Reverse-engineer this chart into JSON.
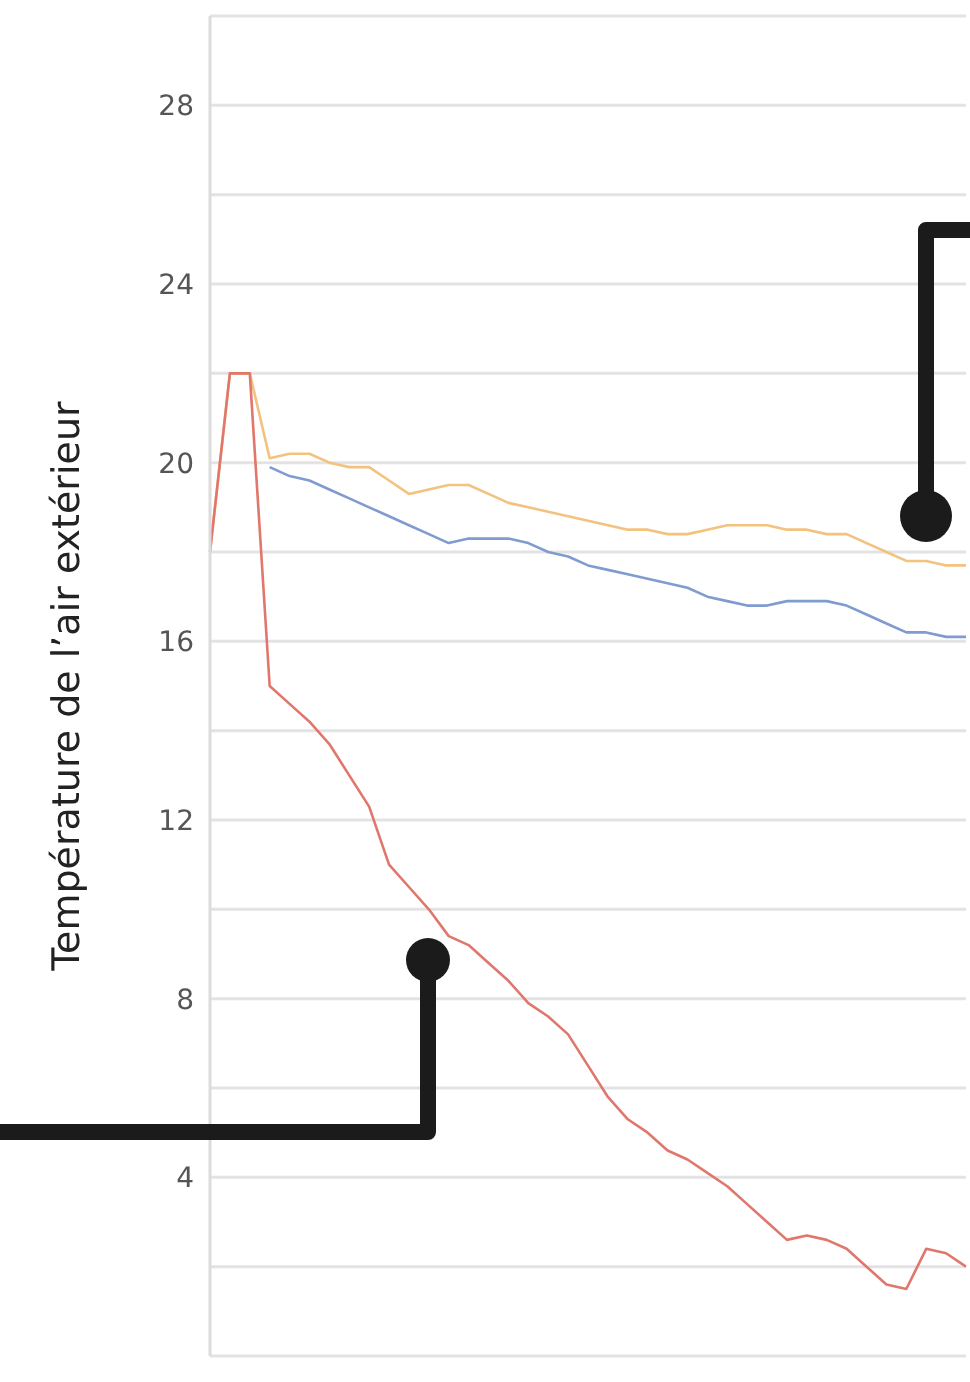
{
  "chart_data": {
    "type": "line",
    "ylabel": "Température de l’air extérieur",
    "categories": [
      null,
      null,
      null,
      null,
      null,
      null,
      null,
      null,
      null,
      null,
      null,
      null,
      null,
      null,
      null,
      null,
      null,
      null,
      null,
      null,
      null,
      null,
      null,
      null,
      null,
      null,
      null,
      null,
      null,
      null,
      null,
      null,
      null,
      null,
      null,
      null,
      null,
      null,
      null
    ],
    "series": [
      {
        "color": "#f3c27f",
        "values": [
          18,
          22,
          22,
          20.1,
          20.2,
          20.2,
          20.0,
          19.9,
          19.9,
          19.6,
          19.3,
          19.4,
          19.5,
          19.5,
          19.3,
          19.1,
          19.0,
          18.9,
          18.8,
          18.7,
          18.6,
          18.5,
          18.5,
          18.4,
          18.4,
          18.5,
          18.6,
          18.6,
          18.6,
          18.5,
          18.5,
          18.4,
          18.4,
          18.2,
          18.0,
          17.8,
          17.8,
          17.7,
          17.7
        ]
      },
      {
        "color": "#7f9bd0",
        "values": [
          null,
          null,
          null,
          19.9,
          19.7,
          19.6,
          19.4,
          19.2,
          19.0,
          18.8,
          18.6,
          18.4,
          18.2,
          18.3,
          18.3,
          18.3,
          18.2,
          18.0,
          17.9,
          17.7,
          17.6,
          17.5,
          17.4,
          17.3,
          17.2,
          17.0,
          16.9,
          16.8,
          16.8,
          16.9,
          16.9,
          16.9,
          16.8,
          16.6,
          16.4,
          16.2,
          16.2,
          16.1,
          16.1
        ]
      },
      {
        "color": "#e0776c",
        "values": [
          18,
          22,
          22,
          15.0,
          14.6,
          14.2,
          13.7,
          13.0,
          12.3,
          11.0,
          10.5,
          10.0,
          9.4,
          9.2,
          8.8,
          8.4,
          7.9,
          7.6,
          7.2,
          6.5,
          5.8,
          5.3,
          5.0,
          4.6,
          4.4,
          4.1,
          3.8,
          3.4,
          3.0,
          2.6,
          2.7,
          2.6,
          2.4,
          2.0,
          1.6,
          1.5,
          2.4,
          2.3,
          2.0
        ]
      }
    ],
    "ylim": [
      0,
      30
    ],
    "yticks": [
      {
        "value": 2,
        "label": null
      },
      4,
      {
        "value": 6,
        "label": null
      },
      8,
      {
        "value": 10,
        "label": null
      },
      12,
      {
        "value": 14,
        "label": null
      },
      16,
      {
        "value": 18,
        "label": null
      },
      20,
      {
        "value": 22,
        "label": null
      },
      24,
      {
        "value": 26,
        "label": null
      },
      28,
      {
        "value": 30,
        "label": null
      }
    ],
    "grid": "y",
    "tick_labels": "y",
    "marker": "none",
    "line_style": "solid"
  }
}
